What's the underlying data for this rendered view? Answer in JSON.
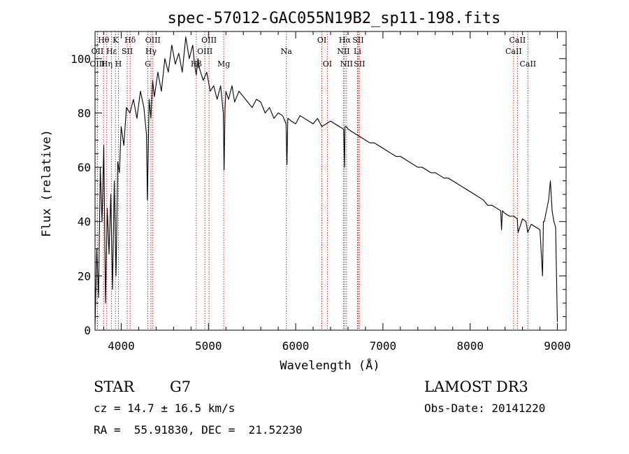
{
  "chart_data": {
    "type": "line",
    "title": "spec-57012-GAC055N19B2_sp11-198.fits",
    "xlabel": "Wavelength (Å)",
    "ylabel": "Flux (relative)",
    "xlim": [
      3700,
      9100
    ],
    "ylim": [
      0,
      110
    ],
    "xticks": [
      4000,
      5000,
      6000,
      7000,
      8000,
      9000
    ],
    "yticks": [
      0,
      20,
      40,
      60,
      80,
      100
    ],
    "series": [
      {
        "name": "flux",
        "x": [
          3700,
          3720,
          3740,
          3760,
          3780,
          3800,
          3820,
          3840,
          3860,
          3880,
          3900,
          3920,
          3940,
          3960,
          3980,
          4000,
          4030,
          4060,
          4100,
          4140,
          4180,
          4220,
          4260,
          4290,
          4300,
          4320,
          4340,
          4360,
          4380,
          4420,
          4460,
          4500,
          4540,
          4580,
          4620,
          4660,
          4700,
          4740,
          4780,
          4820,
          4840,
          4860,
          4880,
          4900,
          4940,
          4980,
          5020,
          5060,
          5100,
          5140,
          5170,
          5180,
          5190,
          5200,
          5230,
          5270,
          5300,
          5350,
          5400,
          5450,
          5500,
          5550,
          5600,
          5650,
          5700,
          5750,
          5800,
          5850,
          5890,
          5900,
          5910,
          5950,
          6000,
          6050,
          6100,
          6150,
          6200,
          6250,
          6300,
          6350,
          6400,
          6450,
          6500,
          6550,
          6560,
          6565,
          6580,
          6600,
          6650,
          6700,
          6750,
          6800,
          6850,
          6900,
          6950,
          7000,
          7050,
          7100,
          7150,
          7200,
          7250,
          7300,
          7350,
          7400,
          7450,
          7500,
          7550,
          7600,
          7650,
          7700,
          7750,
          7800,
          7850,
          7900,
          7950,
          8000,
          8050,
          8100,
          8150,
          8200,
          8250,
          8300,
          8350,
          8360,
          8370,
          8400,
          8450,
          8500,
          8540,
          8550,
          8600,
          8640,
          8660,
          8700,
          8750,
          8800,
          8830,
          8840,
          8850,
          8900,
          8920,
          8940,
          8960,
          8980,
          9000
        ],
        "y": [
          2,
          30,
          12,
          60,
          40,
          68,
          10,
          45,
          28,
          50,
          15,
          55,
          20,
          62,
          58,
          75,
          68,
          82,
          80,
          85,
          78,
          88,
          82,
          72,
          48,
          85,
          78,
          92,
          86,
          95,
          88,
          100,
          95,
          105,
          98,
          102,
          95,
          108,
          100,
          105,
          98,
          94,
          100,
          96,
          92,
          95,
          88,
          90,
          85,
          90,
          80,
          59,
          82,
          88,
          85,
          90,
          84,
          88,
          86,
          84,
          82,
          85,
          84,
          80,
          82,
          78,
          80,
          79,
          76,
          61,
          78,
          77,
          76,
          79,
          78,
          77,
          76,
          78,
          75,
          76,
          77,
          76,
          75,
          74,
          60,
          75,
          75,
          74,
          73,
          72,
          71,
          70,
          69,
          69,
          68,
          67,
          66,
          65,
          64,
          64,
          63,
          62,
          61,
          60,
          60,
          59,
          58,
          58,
          57,
          56,
          56,
          55,
          54,
          53,
          52,
          51,
          50,
          49,
          48,
          46,
          46,
          45,
          44,
          37,
          44,
          43,
          42,
          42,
          41,
          36,
          41,
          40,
          36,
          39,
          38,
          37,
          20,
          40,
          40,
          48,
          55,
          44,
          40,
          38,
          3
        ]
      }
    ],
    "spectral_lines": [
      {
        "label": "Hθ",
        "wavelength": 3798,
        "row": 1
      },
      {
        "label": "OII",
        "wavelength": 3727,
        "row": 2
      },
      {
        "label": "OIII",
        "wavelength": 3727,
        "row": 3
      },
      {
        "label": "K",
        "wavelength": 3934,
        "row": 1
      },
      {
        "label": "Hε",
        "wavelength": 3889,
        "row": 2
      },
      {
        "label": "Hη",
        "wavelength": 3835,
        "row": 3
      },
      {
        "label": "Hδ",
        "wavelength": 4102,
        "row": 1
      },
      {
        "label": "SII",
        "wavelength": 4069,
        "row": 2
      },
      {
        "label": "H",
        "wavelength": 3968,
        "row": 3
      },
      {
        "label": "OIII",
        "wavelength": 4363,
        "row": 1
      },
      {
        "label": "Hγ",
        "wavelength": 4341,
        "row": 2
      },
      {
        "label": "G",
        "wavelength": 4305,
        "row": 3
      },
      {
        "label": "OIII",
        "wavelength": 5007,
        "row": 1
      },
      {
        "label": "OIII",
        "wavelength": 4959,
        "row": 2
      },
      {
        "label": "Hβ",
        "wavelength": 4861,
        "row": 3
      },
      {
        "label": "Mg",
        "wavelength": 5175,
        "row": 3
      },
      {
        "label": "Na",
        "wavelength": 5893,
        "row": 2
      },
      {
        "label": "OI",
        "wavelength": 6300,
        "row": 1
      },
      {
        "label": "OI",
        "wavelength": 6363,
        "row": 3
      },
      {
        "label": "Hα",
        "wavelength": 6563,
        "row": 1
      },
      {
        "label": "NII",
        "wavelength": 6548,
        "row": 2
      },
      {
        "label": "NII",
        "wavelength": 6583,
        "row": 3
      },
      {
        "label": "SII",
        "wavelength": 6716,
        "row": 1
      },
      {
        "label": "Li",
        "wavelength": 6708,
        "row": 2
      },
      {
        "label": "SII",
        "wavelength": 6731,
        "row": 3
      },
      {
        "label": "CaII",
        "wavelength": 8542,
        "row": 1
      },
      {
        "label": "CaII",
        "wavelength": 8498,
        "row": 2
      },
      {
        "label": "CaII",
        "wavelength": 8662,
        "row": 3
      }
    ]
  },
  "info": {
    "object_class": "STAR",
    "subclass": "G7",
    "survey": "LAMOST DR3",
    "cz": "cz = 14.7 ± 16.5 km/s",
    "obs_date": "Obs-Date: 20141220",
    "coords": "RA =  55.91830, DEC =  21.52230"
  }
}
